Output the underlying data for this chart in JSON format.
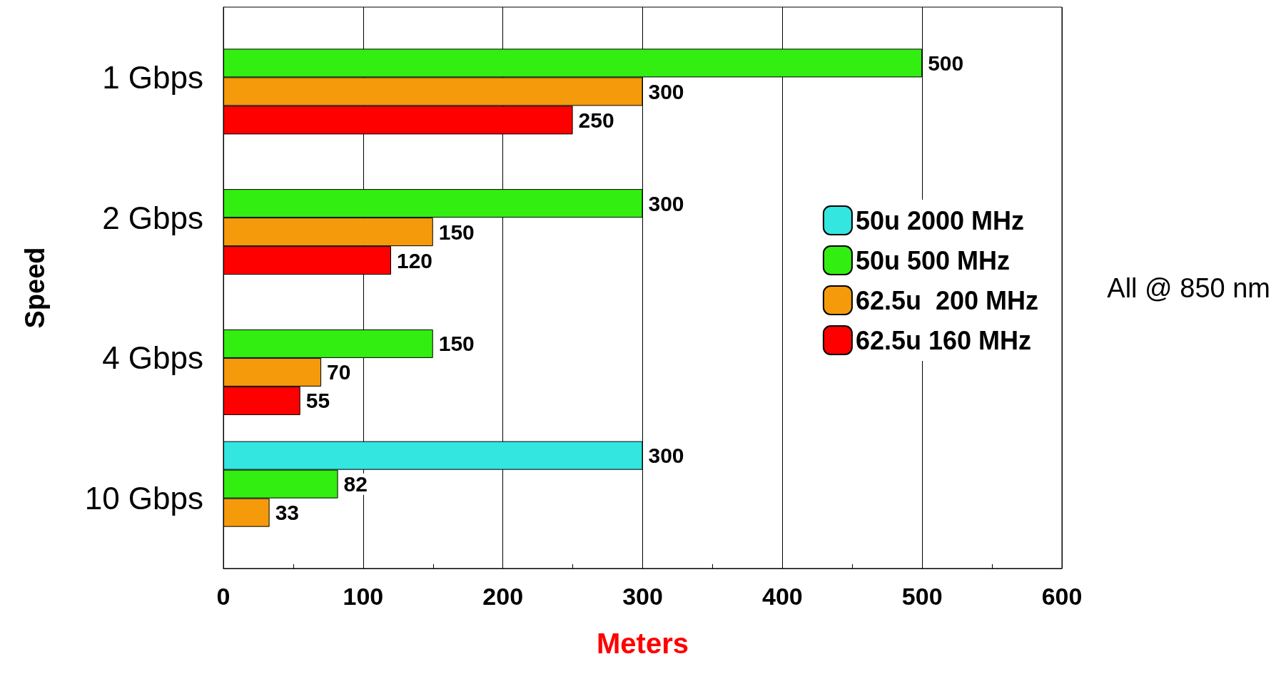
{
  "chart_data": {
    "type": "bar",
    "orientation": "horizontal",
    "categories": [
      "1 Gbps",
      "2 Gbps",
      "4 Gbps",
      "10 Gbps"
    ],
    "series": [
      {
        "name": "50u 2000 MHz",
        "color": "#33e6e0",
        "values": [
          null,
          null,
          null,
          300
        ]
      },
      {
        "name": "50u 500 MHz",
        "color": "#33ee11",
        "values": [
          500,
          300,
          150,
          82
        ]
      },
      {
        "name": "62.5u  200 MHz",
        "color": "#f59a0a",
        "values": [
          300,
          150,
          70,
          33
        ]
      },
      {
        "name": "62.5u 160 MHz",
        "color": "#ff0000",
        "values": [
          250,
          120,
          55,
          null
        ]
      }
    ],
    "xlim": [
      0,
      600
    ],
    "xticks": [
      0,
      100,
      200,
      300,
      400,
      500,
      600
    ],
    "xlabel": "Meters",
    "ylabel": "Speed",
    "annotations": [
      "All @ 850 nm"
    ],
    "grid": "x",
    "legend": "right",
    "data_labels": true
  }
}
